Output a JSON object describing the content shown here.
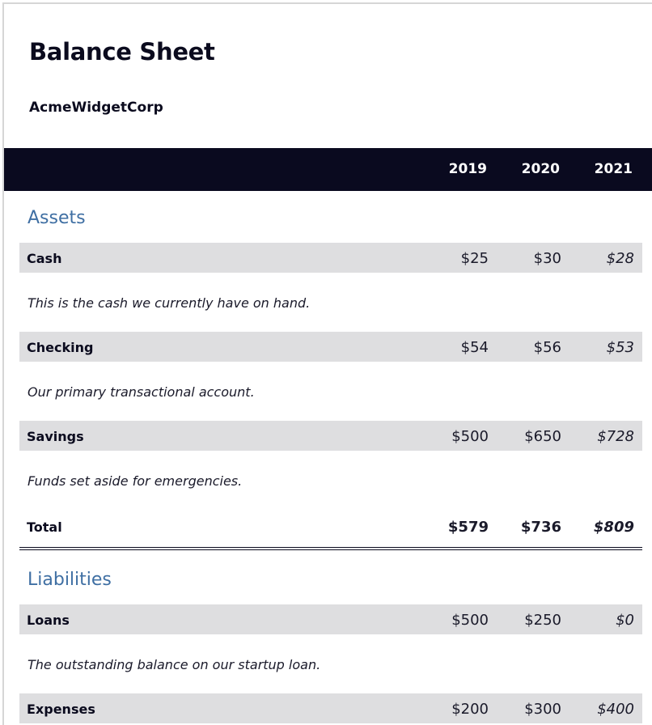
{
  "document": {
    "title": "Balance Sheet",
    "company": "AcmeWidgetCorp"
  },
  "header": {
    "years": [
      "2019",
      "2020",
      "2021"
    ]
  },
  "assets": {
    "section_title": "Assets",
    "rows": [
      {
        "label": "Cash",
        "values": [
          "$25",
          "$30",
          "$28"
        ],
        "note": "This is the cash we currently have on hand."
      },
      {
        "label": "Checking",
        "values": [
          "$54",
          "$56",
          "$53"
        ],
        "note": "Our primary transactional account."
      },
      {
        "label": "Savings",
        "values": [
          "$500",
          "$650",
          "$728"
        ],
        "note": "Funds set aside for emergencies."
      }
    ],
    "total": {
      "label": "Total",
      "values": [
        "$579",
        "$736",
        "$809"
      ]
    }
  },
  "liabilities": {
    "section_title": "Liabilities",
    "rows": [
      {
        "label": "Loans",
        "values": [
          "$500",
          "$250",
          "$0"
        ],
        "note": "The outstanding balance on our startup loan."
      },
      {
        "label": "Expenses",
        "values": [
          "$200",
          "$300",
          "$400"
        ]
      }
    ]
  }
}
